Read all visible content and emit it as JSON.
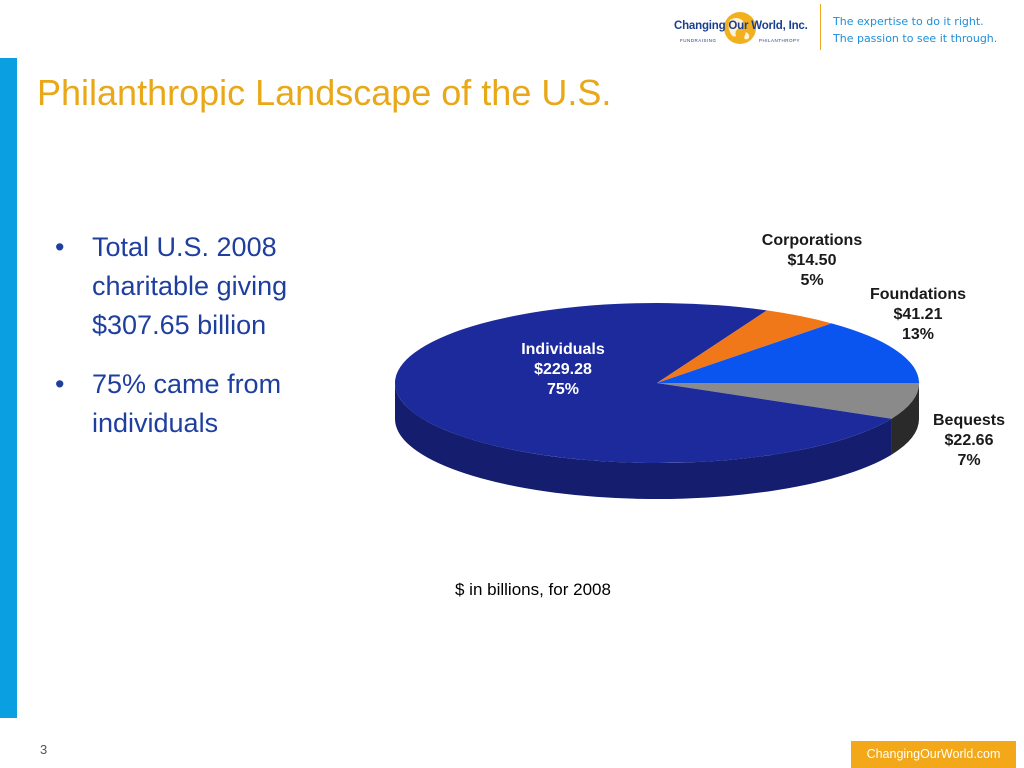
{
  "header": {
    "logo_name": "Changing Our World, Inc.",
    "logo_sub_left": "FUNDRAISING",
    "logo_sub_right": "PHILANTHROPY",
    "tagline_line1": "The expertise to do it right.",
    "tagline_line2": "The passion to see it through."
  },
  "slide": {
    "title": "Philanthropic Landscape of the U.S.",
    "bullets": [
      "Total U.S. 2008 charitable giving $307.65 billion",
      "75% came from individuals"
    ],
    "caption": "$ in billions, for 2008",
    "page_number": "3",
    "footer_link": "ChangingOurWorld.com"
  },
  "colors": {
    "accent_orange": "#e8a818",
    "bullet_blue": "#1f3f9f",
    "left_bar_blue": "#0a9fe0",
    "individuals": "#1c2a9c",
    "corporations": "#f07818",
    "foundations": "#0a55f0",
    "bequests": "#8a8a8a"
  },
  "chart_data": {
    "type": "pie",
    "title": "",
    "unit": "$ in billions",
    "slices": [
      {
        "name": "Individuals",
        "value_label": "$229.28",
        "percent_label": "75%",
        "value": 229.28,
        "percent": 75,
        "color": "#1c2a9c",
        "side_color": "#141d6e"
      },
      {
        "name": "Corporations",
        "value_label": "$14.50",
        "percent_label": "5%",
        "value": 14.5,
        "percent": 5,
        "color": "#f07818",
        "side_color": "#b55510"
      },
      {
        "name": "Foundations",
        "value_label": "$41.21",
        "percent_label": "13%",
        "value": 41.21,
        "percent": 13,
        "color": "#0a55f0",
        "side_color": "#0838a8"
      },
      {
        "name": "Bequests",
        "value_label": "$22.66",
        "percent_label": "7%",
        "value": 22.66,
        "percent": 7,
        "color": "#8a8a8a",
        "side_color": "#2a2a2a"
      }
    ]
  }
}
